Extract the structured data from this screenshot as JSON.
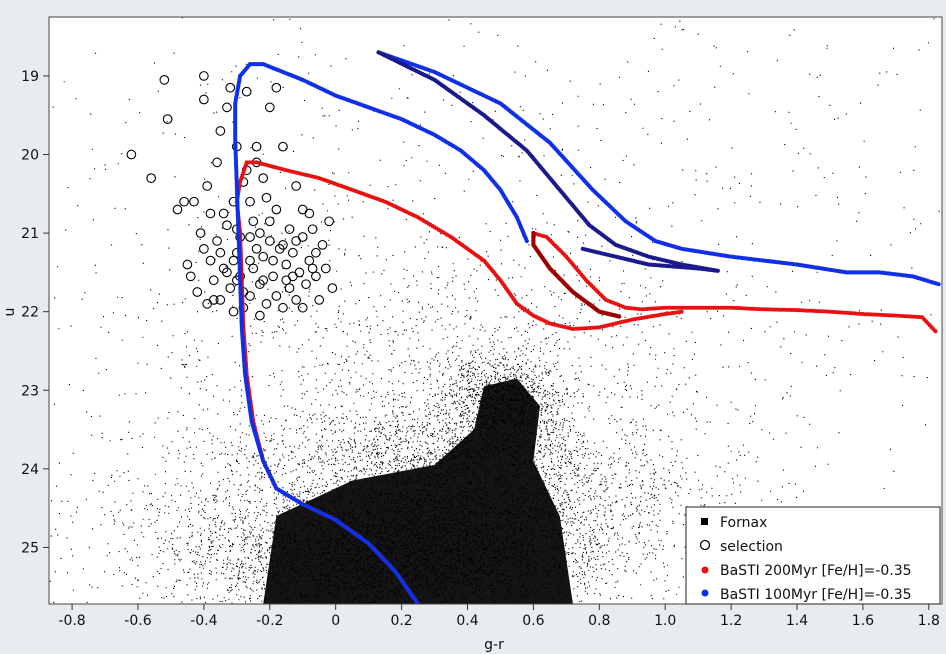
{
  "chart_data": {
    "type": "scatter",
    "title": "",
    "xlabel": "g-r",
    "ylabel": "u",
    "xlim": [
      -0.87,
      1.84
    ],
    "ylim": [
      25.72,
      18.25
    ],
    "y_inverted": true,
    "grid": false,
    "legend_position": "bottom-right",
    "x_ticks": [
      "-0.8",
      "-0.6",
      "-0.4",
      "-0.2",
      "0",
      "0.2",
      "0.4",
      "0.6",
      "0.8",
      "1.0",
      "1.2",
      "1.4",
      "1.6",
      "1.8"
    ],
    "x_tick_values": [
      -0.8,
      -0.6,
      -0.4,
      -0.2,
      0,
      0.2,
      0.4,
      0.6,
      0.8,
      1.0,
      1.2,
      1.4,
      1.6,
      1.8
    ],
    "y_ticks": [
      "19",
      "20",
      "21",
      "22",
      "23",
      "24",
      "25"
    ],
    "y_tick_values": [
      19,
      20,
      21,
      22,
      23,
      24,
      25
    ],
    "series": [
      {
        "name": "Fornax",
        "marker": "square",
        "color": "#000000",
        "density_blobs": [
          {
            "x": 0.2,
            "y": 25.1,
            "sx": 0.32,
            "sy": 0.45,
            "weight": 0.38
          },
          {
            "x": 0.5,
            "y": 23.1,
            "sx": 0.09,
            "sy": 0.28,
            "weight": 0.09
          },
          {
            "x": 0.32,
            "y": 23.75,
            "sx": 0.28,
            "sy": 0.3,
            "weight": 0.11
          },
          {
            "x": 0.55,
            "y": 24.4,
            "sx": 0.3,
            "sy": 0.5,
            "weight": 0.13
          },
          {
            "x": -0.1,
            "y": 24.7,
            "sx": 0.35,
            "sy": 0.6,
            "weight": 0.1
          },
          {
            "x": 0.3,
            "y": 22.6,
            "sx": 0.42,
            "sy": 0.7,
            "weight": 0.08
          },
          {
            "x": 0.5,
            "y": 22.0,
            "sx": 0.8,
            "sy": 2.2,
            "weight": 0.07
          },
          {
            "x": 0.5,
            "y": 21.5,
            "sx": 0.9,
            "sy": 2.8,
            "weight": 0.04
          }
        ]
      },
      {
        "name": "selection",
        "marker": "open-circle",
        "color": "#000000",
        "points": [
          {
            "x": -0.62,
            "y": 20.0
          },
          {
            "x": -0.56,
            "y": 20.3
          },
          {
            "x": -0.52,
            "y": 19.05
          },
          {
            "x": -0.51,
            "y": 19.55
          },
          {
            "x": -0.48,
            "y": 20.7
          },
          {
            "x": -0.46,
            "y": 20.6
          },
          {
            "x": -0.43,
            "y": 20.6
          },
          {
            "x": -0.41,
            "y": 21.0
          },
          {
            "x": -0.45,
            "y": 21.4
          },
          {
            "x": -0.44,
            "y": 21.55
          },
          {
            "x": -0.42,
            "y": 21.75
          },
          {
            "x": -0.4,
            "y": 21.2
          },
          {
            "x": -0.39,
            "y": 21.9
          },
          {
            "x": -0.38,
            "y": 21.35
          },
          {
            "x": -0.4,
            "y": 19.0
          },
          {
            "x": -0.4,
            "y": 19.3
          },
          {
            "x": -0.39,
            "y": 20.4
          },
          {
            "x": -0.38,
            "y": 20.75
          },
          {
            "x": -0.37,
            "y": 21.6
          },
          {
            "x": -0.36,
            "y": 21.1
          },
          {
            "x": -0.36,
            "y": 20.1
          },
          {
            "x": -0.35,
            "y": 19.7
          },
          {
            "x": -0.35,
            "y": 21.85
          },
          {
            "x": -0.34,
            "y": 21.45
          },
          {
            "x": -0.33,
            "y": 19.4
          },
          {
            "x": -0.33,
            "y": 20.9
          },
          {
            "x": -0.32,
            "y": 19.15
          },
          {
            "x": -0.32,
            "y": 21.7
          },
          {
            "x": -0.31,
            "y": 20.6
          },
          {
            "x": -0.31,
            "y": 22.0
          },
          {
            "x": -0.3,
            "y": 19.9
          },
          {
            "x": -0.3,
            "y": 21.25
          },
          {
            "x": -0.29,
            "y": 21.55
          },
          {
            "x": -0.28,
            "y": 20.35
          },
          {
            "x": -0.28,
            "y": 21.95
          },
          {
            "x": -0.27,
            "y": 19.2
          },
          {
            "x": -0.26,
            "y": 21.05
          },
          {
            "x": -0.26,
            "y": 21.8
          },
          {
            "x": -0.25,
            "y": 20.85
          },
          {
            "x": -0.25,
            "y": 21.45
          },
          {
            "x": -0.24,
            "y": 20.1
          },
          {
            "x": -0.23,
            "y": 21.65
          },
          {
            "x": -0.23,
            "y": 22.05
          },
          {
            "x": -0.22,
            "y": 21.3
          },
          {
            "x": -0.21,
            "y": 20.55
          },
          {
            "x": -0.21,
            "y": 21.9
          },
          {
            "x": -0.2,
            "y": 19.4
          },
          {
            "x": -0.2,
            "y": 21.1
          },
          {
            "x": -0.19,
            "y": 21.55
          },
          {
            "x": -0.18,
            "y": 20.7
          },
          {
            "x": -0.18,
            "y": 21.8
          },
          {
            "x": -0.17,
            "y": 21.2
          },
          {
            "x": -0.16,
            "y": 21.95
          },
          {
            "x": -0.15,
            "y": 21.4
          },
          {
            "x": -0.14,
            "y": 20.95
          },
          {
            "x": -0.14,
            "y": 21.7
          },
          {
            "x": -0.13,
            "y": 21.25
          },
          {
            "x": -0.12,
            "y": 21.85
          },
          {
            "x": -0.11,
            "y": 21.5
          },
          {
            "x": -0.1,
            "y": 21.05
          },
          {
            "x": -0.09,
            "y": 21.65
          },
          {
            "x": -0.08,
            "y": 21.35
          },
          {
            "x": -0.07,
            "y": 20.95
          },
          {
            "x": -0.06,
            "y": 21.55
          },
          {
            "x": -0.05,
            "y": 21.85
          },
          {
            "x": -0.04,
            "y": 21.15
          },
          {
            "x": -0.03,
            "y": 21.45
          },
          {
            "x": -0.02,
            "y": 20.85
          },
          {
            "x": -0.01,
            "y": 21.7
          },
          {
            "x": -0.1,
            "y": 21.95
          },
          {
            "x": -0.18,
            "y": 19.15
          },
          {
            "x": -0.16,
            "y": 19.9
          },
          {
            "x": -0.12,
            "y": 20.4
          },
          {
            "x": -0.1,
            "y": 20.7
          },
          {
            "x": -0.08,
            "y": 20.75
          },
          {
            "x": -0.06,
            "y": 21.25
          },
          {
            "x": -0.2,
            "y": 20.85
          },
          {
            "x": -0.22,
            "y": 20.3
          },
          {
            "x": -0.24,
            "y": 19.9
          },
          {
            "x": -0.27,
            "y": 20.2
          },
          {
            "x": -0.26,
            "y": 21.35
          },
          {
            "x": -0.3,
            "y": 21.6
          },
          {
            "x": -0.33,
            "y": 21.5
          },
          {
            "x": -0.35,
            "y": 21.25
          },
          {
            "x": -0.28,
            "y": 21.75
          },
          {
            "x": -0.22,
            "y": 21.6
          },
          {
            "x": -0.15,
            "y": 21.6
          },
          {
            "x": -0.12,
            "y": 21.1
          },
          {
            "x": -0.07,
            "y": 21.45
          },
          {
            "x": -0.24,
            "y": 21.2
          },
          {
            "x": -0.31,
            "y": 21.35
          },
          {
            "x": -0.37,
            "y": 21.85
          },
          {
            "x": -0.29,
            "y": 21.05
          },
          {
            "x": -0.19,
            "y": 21.35
          },
          {
            "x": -0.16,
            "y": 21.15
          },
          {
            "x": -0.13,
            "y": 21.55
          },
          {
            "x": -0.23,
            "y": 21.0
          },
          {
            "x": -0.34,
            "y": 20.75
          },
          {
            "x": -0.3,
            "y": 20.95
          },
          {
            "x": -0.26,
            "y": 20.6
          }
        ]
      },
      {
        "name": "BaSTI 200Myr [Fe/H]=-0.35",
        "marker": "dot",
        "color": "#e81010",
        "track_color": "#e81010",
        "loop_color": "#9b0000",
        "track": [
          [
            0.25,
            25.72
          ],
          [
            0.18,
            25.3
          ],
          [
            0.1,
            24.95
          ],
          [
            0.0,
            24.65
          ],
          [
            -0.1,
            24.45
          ],
          [
            -0.18,
            24.25
          ],
          [
            -0.22,
            23.9
          ],
          [
            -0.25,
            23.4
          ],
          [
            -0.27,
            22.8
          ],
          [
            -0.28,
            22.2
          ],
          [
            -0.285,
            21.6
          ],
          [
            -0.29,
            21.0
          ],
          [
            -0.3,
            20.6
          ],
          [
            -0.29,
            20.35
          ],
          [
            -0.27,
            20.1
          ],
          [
            -0.24,
            20.1
          ],
          [
            -0.15,
            20.2
          ],
          [
            -0.05,
            20.3
          ],
          [
            0.05,
            20.45
          ],
          [
            0.15,
            20.6
          ],
          [
            0.25,
            20.8
          ],
          [
            0.35,
            21.05
          ],
          [
            0.45,
            21.35
          ],
          [
            0.5,
            21.6
          ],
          [
            0.55,
            21.9
          ],
          [
            0.6,
            22.05
          ],
          [
            0.65,
            22.15
          ],
          [
            0.72,
            22.22
          ],
          [
            0.8,
            22.2
          ],
          [
            0.9,
            22.1
          ],
          [
            1.0,
            22.03
          ],
          [
            1.05,
            22.0
          ]
        ],
        "loop": [
          [
            0.6,
            21.0
          ],
          [
            0.64,
            21.05
          ],
          [
            0.7,
            21.3
          ],
          [
            0.76,
            21.6
          ],
          [
            0.82,
            21.85
          ],
          [
            0.88,
            21.95
          ],
          [
            0.93,
            21.97
          ],
          [
            1.0,
            21.95
          ],
          [
            1.1,
            21.95
          ],
          [
            1.2,
            21.95
          ],
          [
            1.3,
            21.97
          ],
          [
            1.4,
            21.98
          ],
          [
            1.5,
            22.0
          ],
          [
            1.6,
            22.03
          ],
          [
            1.7,
            22.05
          ],
          [
            1.78,
            22.07
          ],
          [
            1.82,
            22.25
          ]
        ],
        "loop2": [
          [
            0.6,
            21.0
          ],
          [
            0.6,
            21.15
          ],
          [
            0.65,
            21.45
          ],
          [
            0.72,
            21.75
          ],
          [
            0.8,
            22.0
          ],
          [
            0.86,
            22.06
          ]
        ]
      },
      {
        "name": "BaSTI 100Myr [Fe/H]=-0.35",
        "marker": "dot",
        "color": "#1030e8",
        "track_color": "#1030e8",
        "loop_color": "#1a1a8c",
        "track": [
          [
            0.25,
            25.72
          ],
          [
            0.18,
            25.3
          ],
          [
            0.1,
            24.95
          ],
          [
            0.0,
            24.65
          ],
          [
            -0.1,
            24.45
          ],
          [
            -0.18,
            24.25
          ],
          [
            -0.22,
            23.9
          ],
          [
            -0.255,
            23.4
          ],
          [
            -0.275,
            22.8
          ],
          [
            -0.285,
            22.2
          ],
          [
            -0.29,
            21.6
          ],
          [
            -0.295,
            21.0
          ],
          [
            -0.3,
            20.4
          ],
          [
            -0.305,
            19.8
          ],
          [
            -0.305,
            19.35
          ],
          [
            -0.29,
            19.0
          ],
          [
            -0.26,
            18.85
          ],
          [
            -0.22,
            18.85
          ],
          [
            -0.16,
            18.95
          ],
          [
            -0.1,
            19.05
          ],
          [
            0.0,
            19.25
          ],
          [
            0.1,
            19.4
          ],
          [
            0.2,
            19.55
          ],
          [
            0.3,
            19.75
          ],
          [
            0.38,
            19.95
          ],
          [
            0.45,
            20.2
          ],
          [
            0.5,
            20.45
          ],
          [
            0.55,
            20.8
          ],
          [
            0.58,
            21.1
          ]
        ],
        "loop": [
          [
            0.13,
            18.7
          ],
          [
            0.3,
            18.95
          ],
          [
            0.5,
            19.35
          ],
          [
            0.65,
            19.85
          ],
          [
            0.78,
            20.45
          ],
          [
            0.88,
            20.85
          ],
          [
            0.97,
            21.1
          ],
          [
            1.05,
            21.2
          ],
          [
            1.2,
            21.3
          ],
          [
            1.4,
            21.4
          ],
          [
            1.55,
            21.5
          ],
          [
            1.65,
            21.5
          ],
          [
            1.75,
            21.55
          ],
          [
            1.83,
            21.65
          ]
        ],
        "loop2": [
          [
            0.13,
            18.7
          ],
          [
            0.3,
            19.05
          ],
          [
            0.45,
            19.5
          ],
          [
            0.58,
            19.95
          ],
          [
            0.68,
            20.45
          ],
          [
            0.77,
            20.9
          ],
          [
            0.85,
            21.15
          ],
          [
            0.95,
            21.3
          ],
          [
            1.05,
            21.4
          ],
          [
            1.16,
            21.48
          ],
          [
            1.1,
            21.45
          ],
          [
            0.95,
            21.4
          ],
          [
            0.8,
            21.25
          ],
          [
            0.75,
            21.2
          ]
        ]
      }
    ]
  },
  "legend": {
    "items": [
      {
        "label": "Fornax",
        "marker": "square",
        "color": "#000000"
      },
      {
        "label": "selection",
        "marker": "open-circle",
        "color": "#000000"
      },
      {
        "label": "BaSTI 200Myr [Fe/H]=-0.35",
        "marker": "dot",
        "color": "#e81010"
      },
      {
        "label": "BaSTI 100Myr [Fe/H]=-0.35",
        "marker": "dot",
        "color": "#1030e8"
      }
    ]
  }
}
